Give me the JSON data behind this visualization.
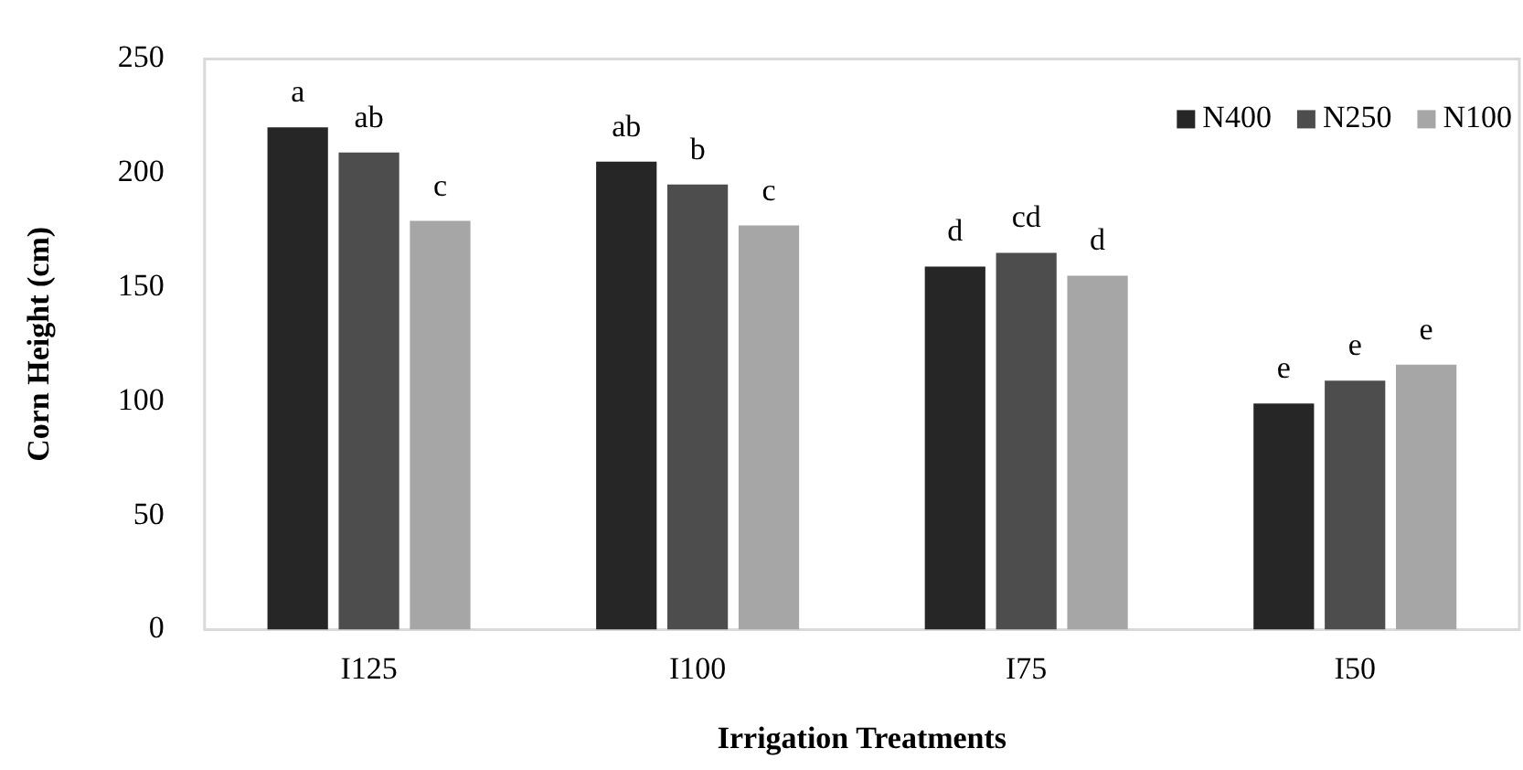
{
  "chart_data": {
    "type": "bar",
    "xlabel": "Irrigation Treatments",
    "ylabel": "Corn Height (cm)",
    "categories": [
      "I125",
      "I100",
      "I75",
      "I50"
    ],
    "series": [
      {
        "name": "N400",
        "color": "#262626",
        "values": [
          220,
          205,
          159,
          99
        ],
        "value_labels": [
          "a",
          "ab",
          "d",
          "e"
        ]
      },
      {
        "name": "N250",
        "color": "#4d4d4d",
        "values": [
          209,
          195,
          165,
          109
        ],
        "value_labels": [
          "ab",
          "b",
          "cd",
          "e"
        ]
      },
      {
        "name": "N100",
        "color": "#a6a6a6",
        "values": [
          179,
          177,
          155,
          116
        ],
        "value_labels": [
          "c",
          "c",
          "d",
          "e"
        ]
      }
    ],
    "ylim": [
      0,
      250
    ],
    "yticks": [
      0,
      50,
      100,
      150,
      200,
      250
    ],
    "grid": false,
    "legend": "top right"
  }
}
